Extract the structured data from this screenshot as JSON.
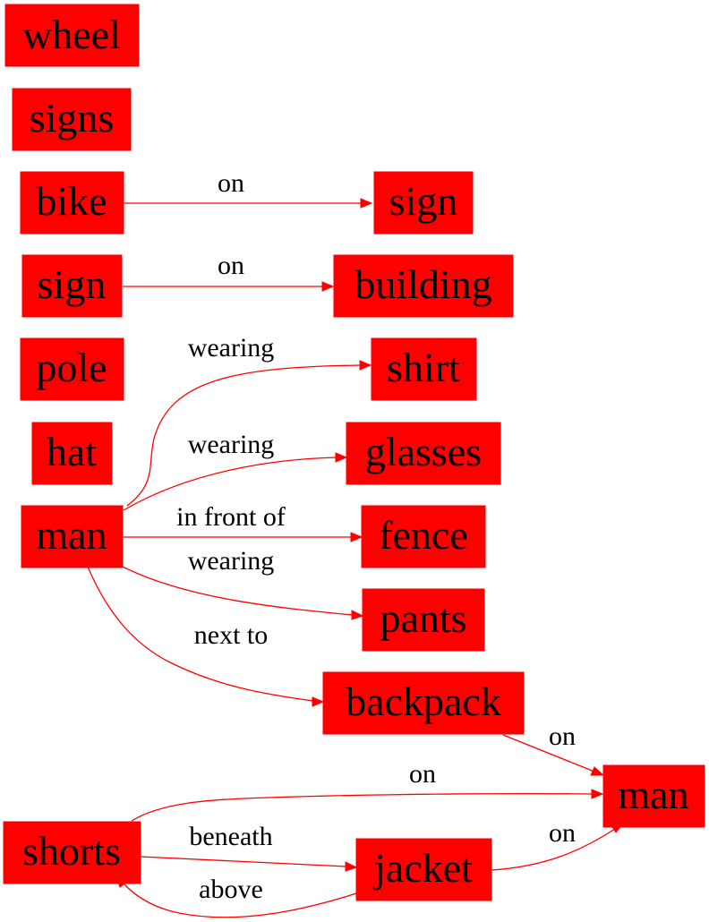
{
  "nodes": {
    "wheel": "wheel",
    "signs": "signs",
    "bike": "bike",
    "sign_a": "sign",
    "sign_b": "sign",
    "building": "building",
    "pole": "pole",
    "shirt": "shirt",
    "hat": "hat",
    "glasses": "glasses",
    "man_a": "man",
    "fence": "fence",
    "pants": "pants",
    "backpack": "backpack",
    "man_b": "man",
    "shorts": "shorts",
    "jacket": "jacket"
  },
  "edges": {
    "bike_sign": "on",
    "sign_building": "on",
    "man_shirt": "wearing",
    "man_glasses": "wearing",
    "man_fence": "in front of",
    "man_pants": "wearing",
    "man_backpack": "next to",
    "backpack_man": "on",
    "shorts_man": "on",
    "shorts_jacket": "beneath",
    "jacket_man": "on",
    "jacket_shorts": "above"
  },
  "colors": {
    "node_fill": "#ff0000",
    "edge": "#ff0000",
    "text": "#000000"
  }
}
